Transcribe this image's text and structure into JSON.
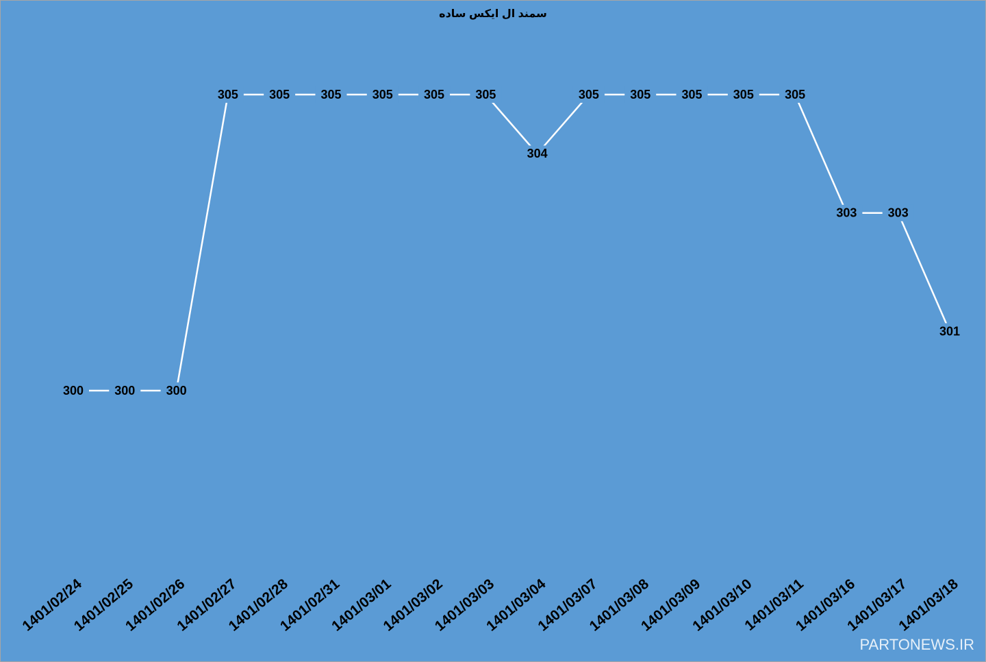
{
  "chart_data": {
    "type": "line",
    "title": "سمند ال ایکس ساده",
    "categories": [
      "1401/02/24",
      "1401/02/25",
      "1401/02/26",
      "1401/02/27",
      "1401/02/28",
      "1401/02/31",
      "1401/03/01",
      "1401/03/02",
      "1401/03/03",
      "1401/03/04",
      "1401/03/07",
      "1401/03/08",
      "1401/03/09",
      "1401/03/10",
      "1401/03/11",
      "1401/03/16",
      "1401/03/17",
      "1401/03/18"
    ],
    "values": [
      300,
      300,
      300,
      305,
      305,
      305,
      305,
      305,
      305,
      304,
      305,
      305,
      305,
      305,
      305,
      303,
      303,
      301
    ],
    "color": "#ffffff"
  },
  "watermark": "PARTONEWS.IR"
}
